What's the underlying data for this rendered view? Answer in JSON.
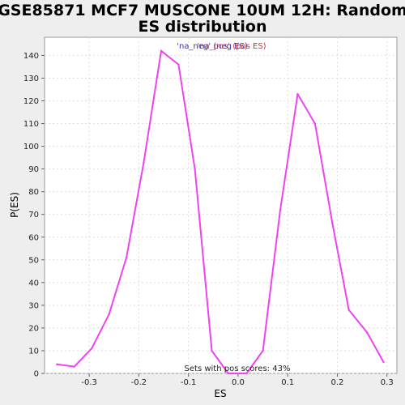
{
  "chart_data": {
    "type": "line",
    "title_line1": "GSE85871 MCF7 MUSCONE 10UM 12H: Random",
    "title_line2": "ES distribution",
    "xlabel": "ES",
    "ylabel": "P(ES)",
    "xlim": [
      -0.39,
      0.32
    ],
    "ylim": [
      0,
      148
    ],
    "x_ticks": [
      -0.3,
      -0.2,
      -0.1,
      0.0,
      0.1,
      0.2,
      0.3
    ],
    "x_tick_labels": [
      "-0.3",
      "-0.2",
      "-0.1",
      "0.0",
      "0.1",
      "0.2",
      "0.3"
    ],
    "y_ticks": [
      0,
      10,
      20,
      30,
      40,
      50,
      60,
      70,
      80,
      90,
      100,
      110,
      120,
      130,
      140
    ],
    "y_tick_labels": [
      "0",
      "10",
      "20",
      "30",
      "40",
      "50",
      "60",
      "70",
      "80",
      "90",
      "100",
      "110",
      "120",
      "130",
      "140"
    ],
    "grid": true,
    "legend": {
      "placement": "top-center",
      "neg_label": "'na_neg' (neg ES)",
      "pos_label": "'na_pos' (pos ES)",
      "neg_color": "#3333cc",
      "pos_color": "#cc3333"
    },
    "annotation": "Sets with pos scores: 43%",
    "line_color": "#ee44ee",
    "series": [
      {
        "x": [
          -0.365,
          -0.33,
          -0.295,
          -0.26,
          -0.225,
          -0.19,
          -0.155,
          -0.12,
          -0.087,
          -0.053,
          -0.02,
          0.017,
          0.05,
          0.085,
          0.12,
          0.155,
          0.19,
          0.223,
          0.26,
          0.293
        ],
        "values": [
          4,
          3,
          11,
          26,
          51,
          93,
          142,
          136,
          90,
          10,
          0,
          0,
          10,
          72,
          123,
          110,
          66,
          28,
          18,
          5
        ]
      }
    ]
  }
}
